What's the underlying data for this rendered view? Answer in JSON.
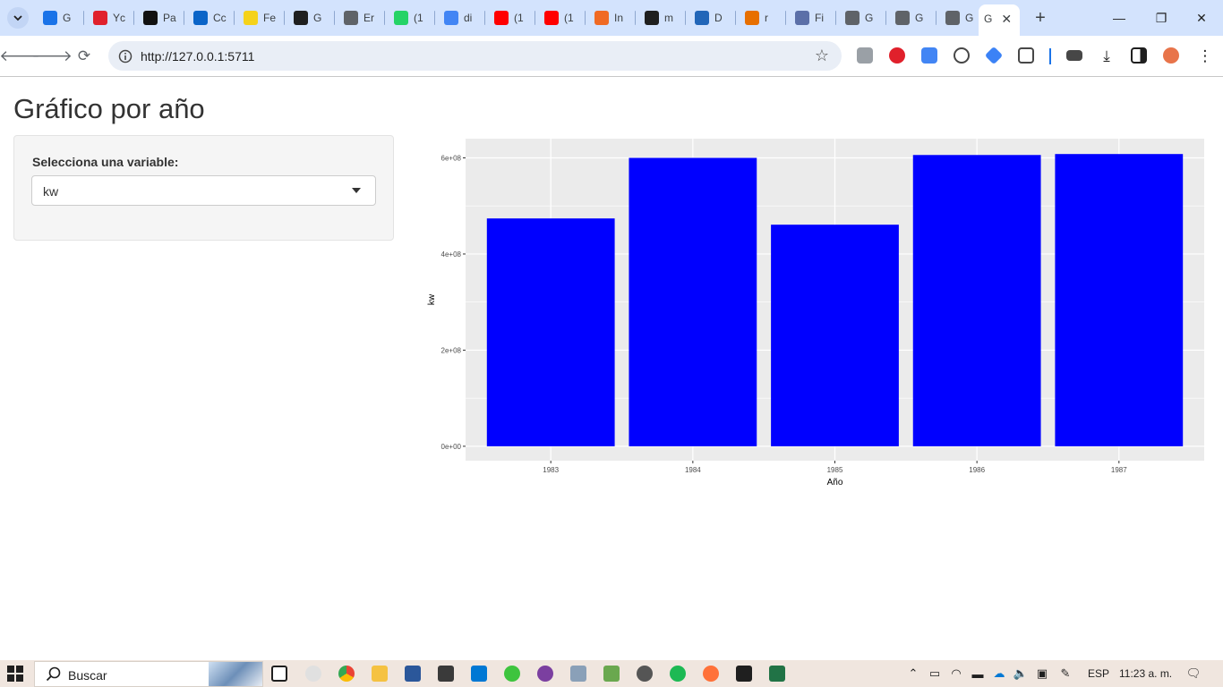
{
  "browser": {
    "tabs": [
      {
        "short": "G",
        "icon": "google-calendar-icon",
        "color": "#1a73e8"
      },
      {
        "short": "Yc",
        "icon": "opera-icon",
        "color": "#e0202b"
      },
      {
        "short": "Pa",
        "icon": "d2l-icon",
        "color": "#111111"
      },
      {
        "short": "Cc",
        "icon": "outlook-icon",
        "color": "#0a64c8"
      },
      {
        "short": "Fe",
        "icon": "miro-icon",
        "color": "#f5d21a"
      },
      {
        "short": "G",
        "icon": "github-icon",
        "color": "#1f1f1f"
      },
      {
        "short": "Er",
        "icon": "globe-icon",
        "color": "#5f6368"
      },
      {
        "short": "(1",
        "icon": "whatsapp-icon",
        "color": "#25d366"
      },
      {
        "short": "di",
        "icon": "google-icon",
        "color": "#4285f4"
      },
      {
        "short": "(1",
        "icon": "youtube-icon",
        "color": "#ff0000"
      },
      {
        "short": "(1",
        "icon": "youtube-icon",
        "color": "#ff0000"
      },
      {
        "short": "In",
        "icon": "r-logo-icon",
        "color": "#f06a23"
      },
      {
        "short": "m",
        "icon": "github-icon",
        "color": "#1f1f1f"
      },
      {
        "short": "D",
        "icon": "r-project-icon",
        "color": "#2266b8"
      },
      {
        "short": "r",
        "icon": "java-icon",
        "color": "#e76f00"
      },
      {
        "short": "Fi",
        "icon": "chat-icon",
        "color": "#5b6fa8"
      },
      {
        "short": "G",
        "icon": "globe-icon",
        "color": "#5f6368"
      },
      {
        "short": "G",
        "icon": "globe-icon",
        "color": "#5f6368"
      },
      {
        "short": "G",
        "icon": "globe-icon",
        "color": "#5f6368"
      }
    ],
    "active_tab": {
      "short": "G"
    },
    "url": "http://127.0.0.1:5711"
  },
  "page": {
    "title": "Gráfico por año",
    "select_label": "Selecciona una variable:",
    "select_value": "kw"
  },
  "chart_data": {
    "type": "bar",
    "categories": [
      "1983",
      "1984",
      "1985",
      "1986",
      "1987"
    ],
    "values": [
      474000000,
      600000000,
      461000000,
      606000000,
      608000000
    ],
    "xlabel": "Año",
    "ylabel": "kw",
    "yticks": [
      {
        "value": 0,
        "label": "0e+00"
      },
      {
        "value": 200000000,
        "label": "2e+08"
      },
      {
        "value": 400000000,
        "label": "4e+08"
      },
      {
        "value": 600000000,
        "label": "6e+08"
      }
    ],
    "ylim": [
      -30000000,
      640000000
    ],
    "bar_color": "#0000ff",
    "panel_color": "#ebebeb",
    "grid": true
  },
  "taskbar": {
    "search_label": "Buscar",
    "language": "ESP",
    "time": "11:23 a. m."
  }
}
